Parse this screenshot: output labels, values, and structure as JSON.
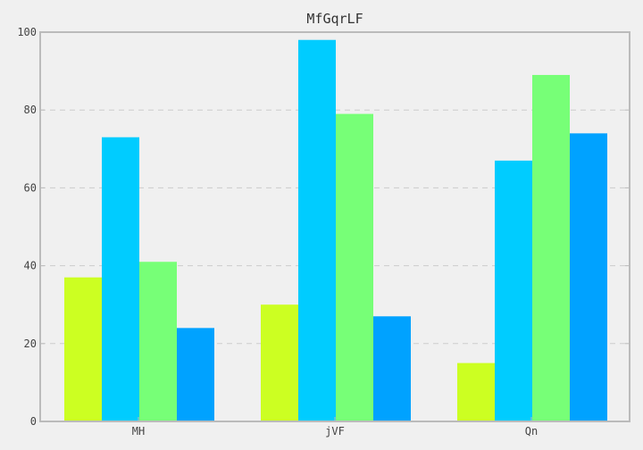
{
  "chart_data": {
    "type": "bar",
    "title": "MfGqrLF",
    "xlabel": "",
    "ylabel": "",
    "categories": [
      "MH",
      "jVF",
      "Qn"
    ],
    "series": [
      {
        "values": [
          37,
          30,
          15
        ],
        "color": "#ccff22"
      },
      {
        "values": [
          73,
          98,
          67
        ],
        "color": "#00ccff"
      },
      {
        "values": [
          41,
          79,
          89
        ],
        "color": "#77ff77"
      },
      {
        "values": [
          24,
          27,
          74
        ],
        "color": "#00a2ff"
      }
    ],
    "ylim": [
      0,
      100
    ],
    "yticks": [
      0,
      20,
      40,
      60,
      80,
      100
    ],
    "grid": "horizontal-dashed",
    "legend": "none",
    "colors": {
      "background": "#f0f0f0",
      "frame": "#bbbbbb",
      "grid": "#cccccc",
      "text": "#444444"
    }
  }
}
